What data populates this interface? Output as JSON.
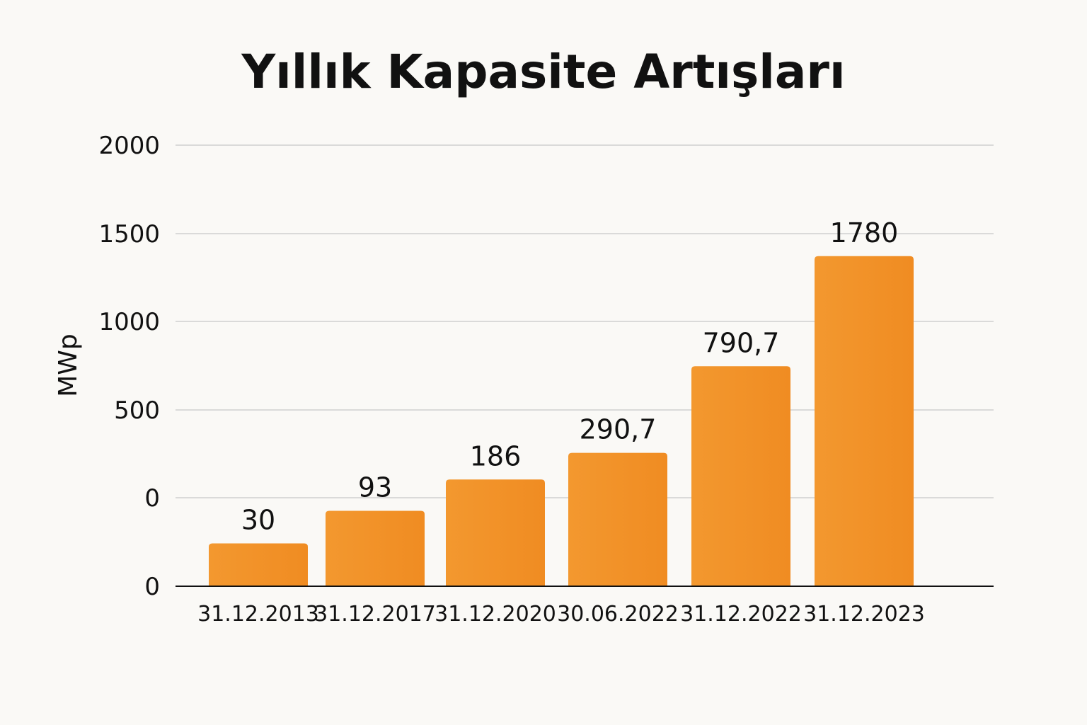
{
  "chart_data": {
    "type": "bar",
    "title": "Yıllık Kapasite Artışları",
    "xlabel": "",
    "ylabel": "MWp",
    "y_tick_labels": [
      "0",
      "0",
      "500",
      "1000",
      "1500",
      "2000"
    ],
    "categories": [
      "31.12.2013",
      "31.12.2017",
      "31.12.2020",
      "30.06.2022",
      "31.12.2022",
      "31.12.2023"
    ],
    "values": [
      30,
      93,
      186,
      290.7,
      790.7,
      1780
    ],
    "data_labels": [
      "30",
      "93",
      "186",
      "290,7",
      "790,7",
      "1780"
    ],
    "grid": true,
    "legend": "none",
    "colors": {
      "bar": "#f08c22",
      "bar_light": "#f3982f",
      "background": "#faf9f6",
      "grid": "#cfcfcf",
      "text": "#111111"
    }
  }
}
